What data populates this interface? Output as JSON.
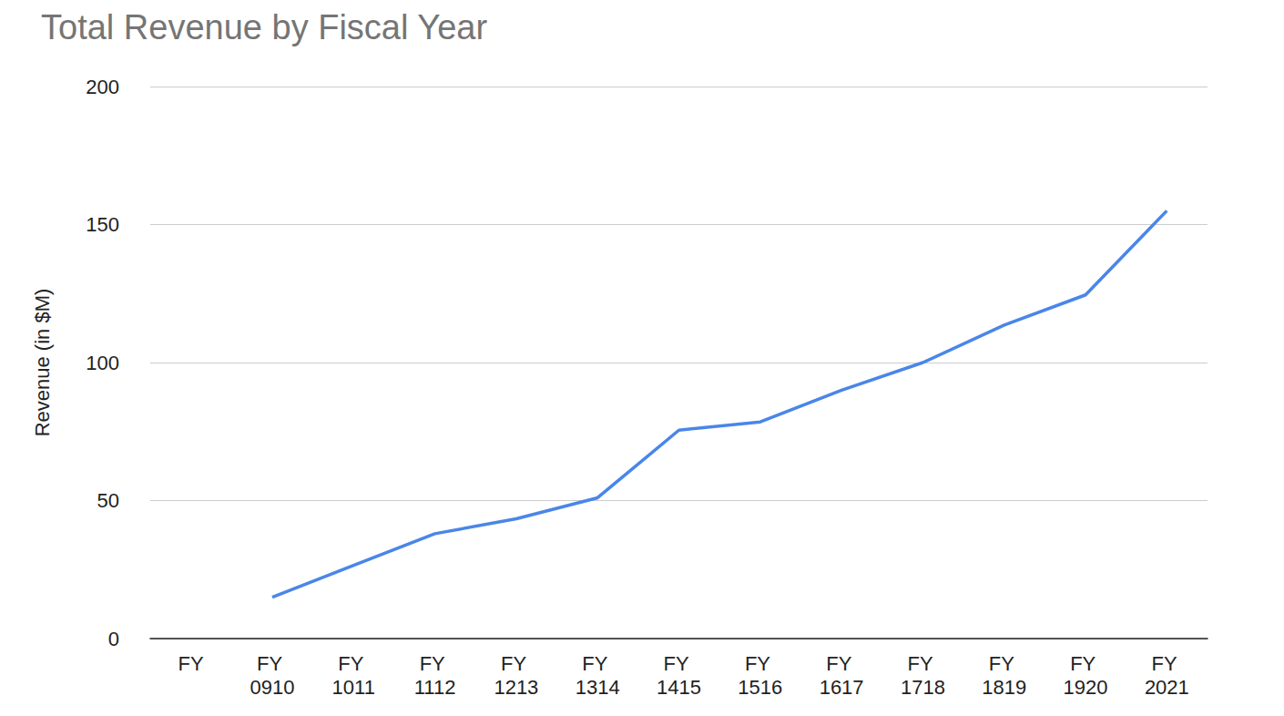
{
  "chart_data": {
    "type": "line",
    "title": "Total Revenue by Fiscal Year",
    "y_label": "Revenue (in $M)",
    "categories": [
      "FY",
      "FY 0910",
      "FY 1011",
      "FY 1112",
      "FY 1213",
      "FY 1314",
      "FY 1415",
      "FY 1516",
      "FY 1617",
      "FY 1718",
      "FY 1819",
      "FY 1920",
      "FY 2021"
    ],
    "values": [
      null,
      15,
      26.5,
      38,
      43.4,
      51,
      75.5,
      78.5,
      90,
      100,
      113.6,
      124.5,
      155
    ],
    "color": "#4a86e8",
    "ylim": [
      0,
      200
    ],
    "yticks": [
      0,
      50,
      100,
      150,
      200
    ],
    "grid": true
  }
}
